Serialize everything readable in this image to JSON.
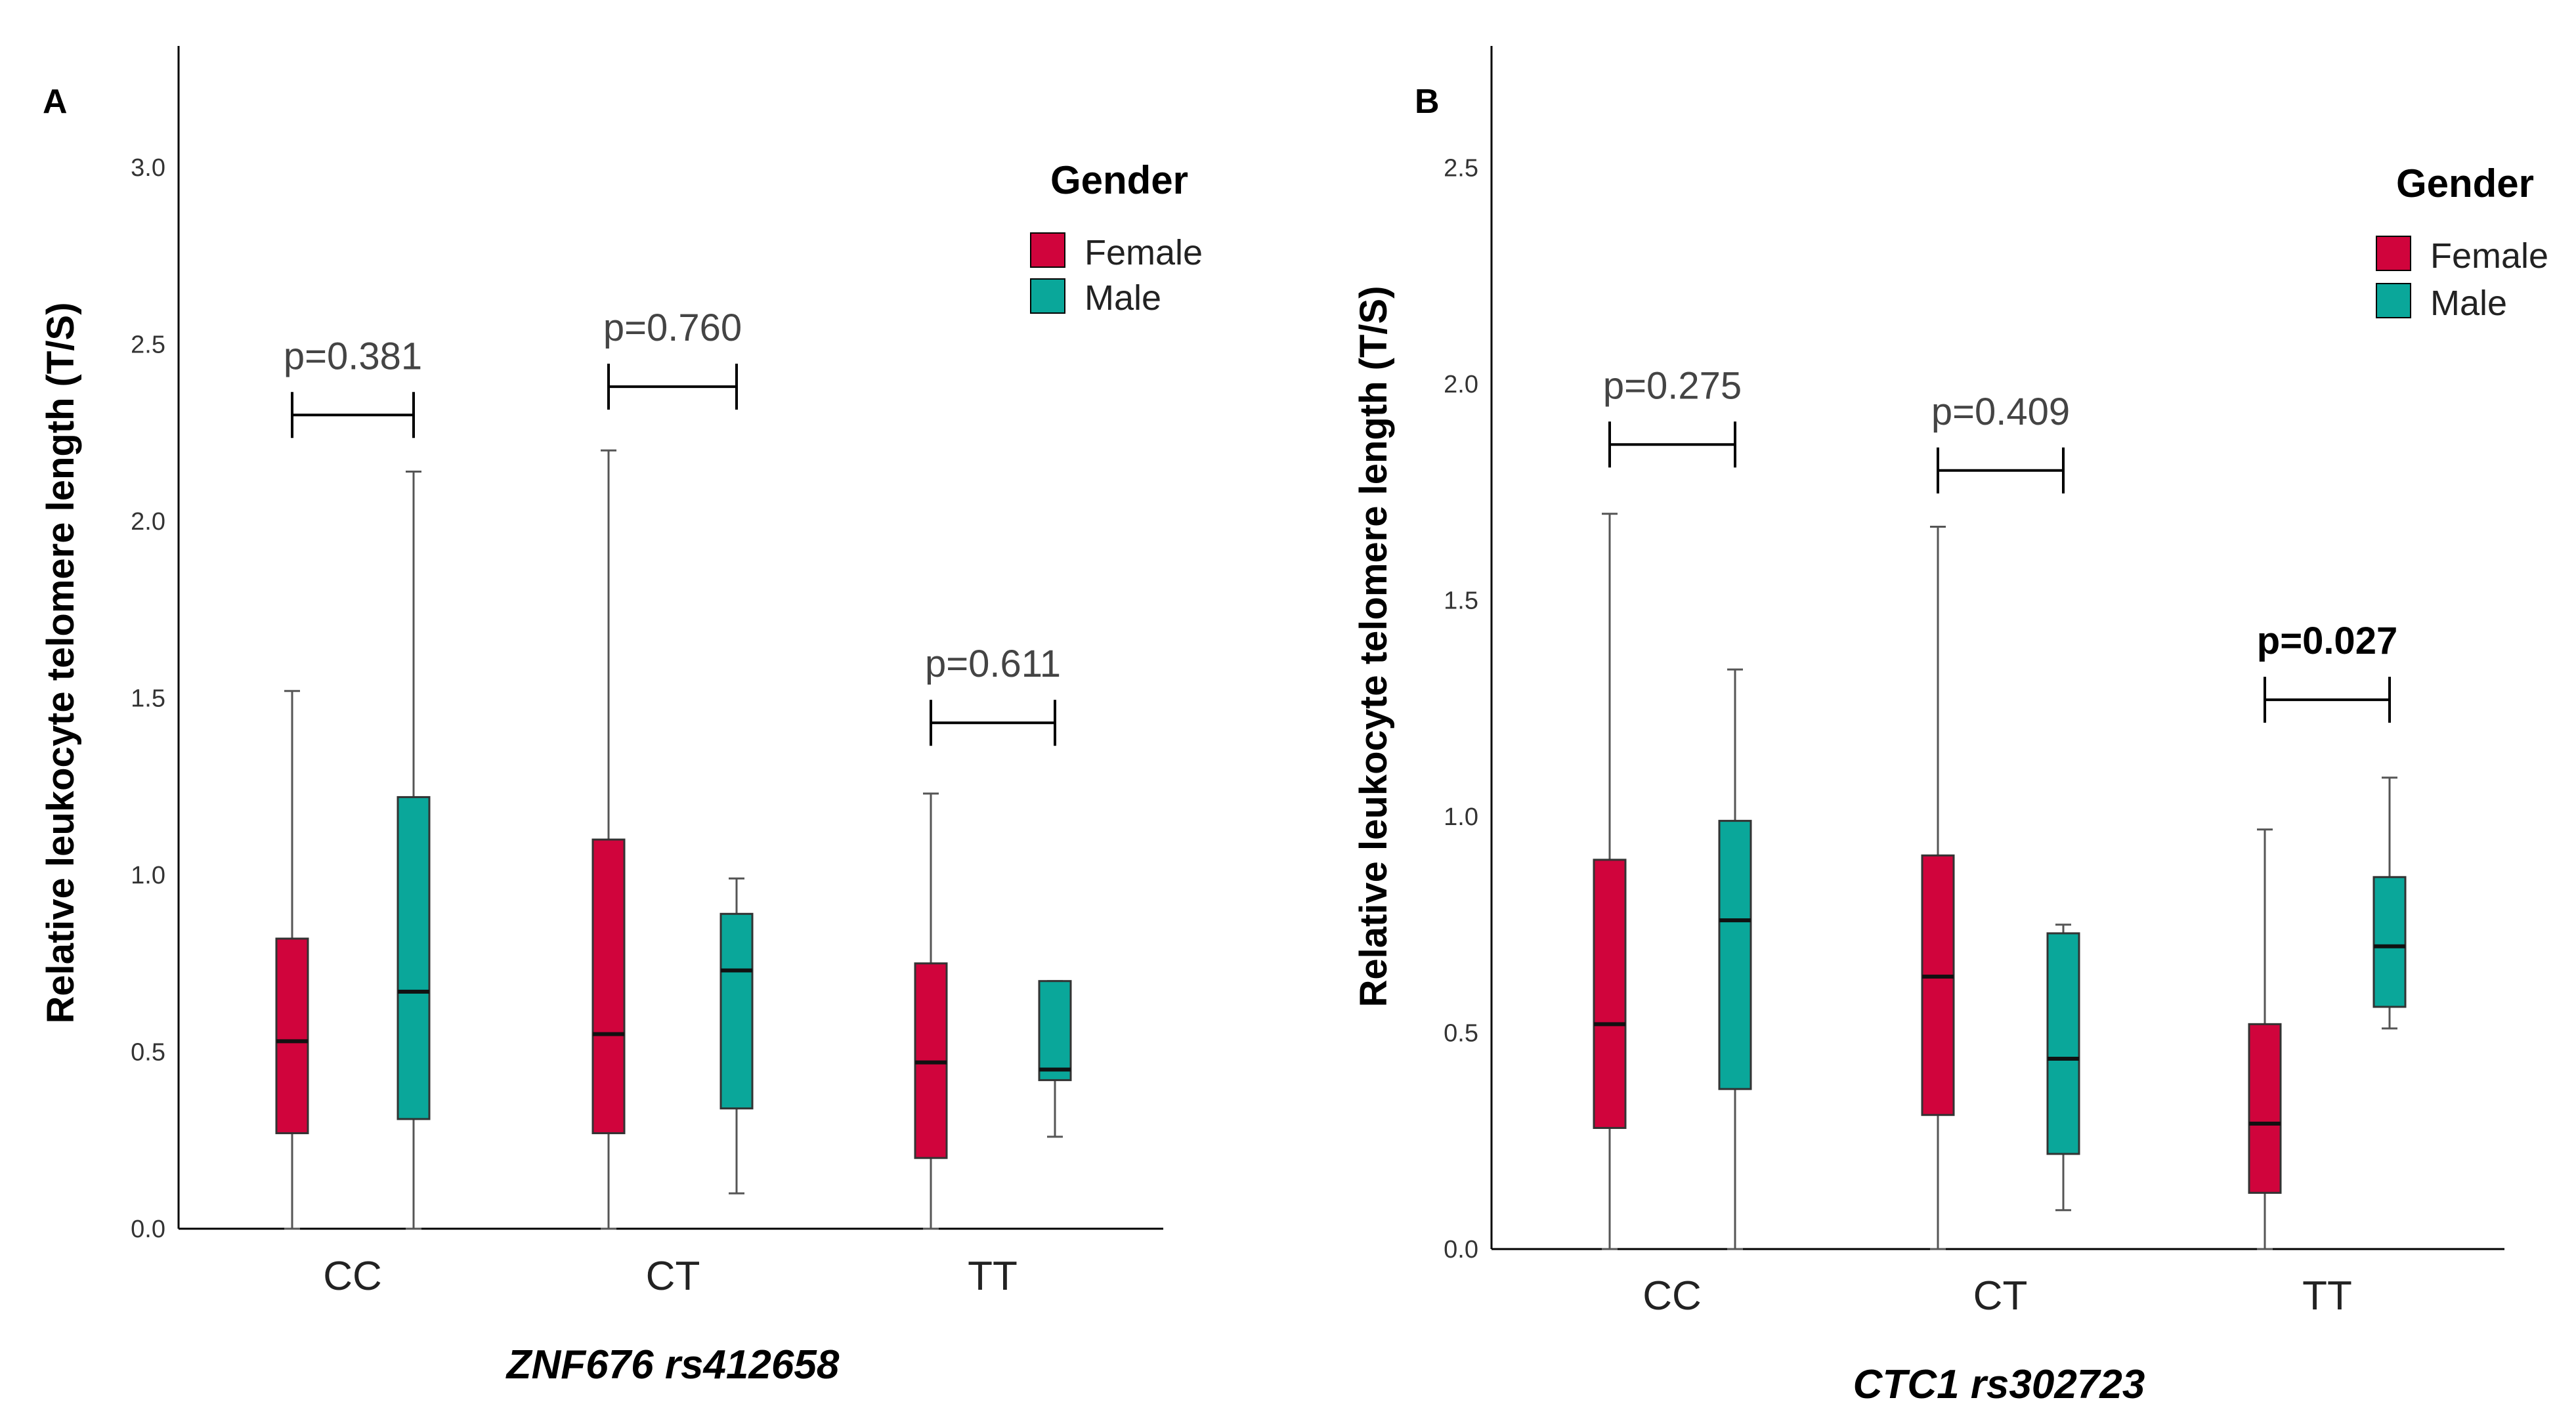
{
  "chart_data": [
    {
      "type": "boxplot",
      "panel": "A",
      "title": "",
      "xlabel": "ZNF676 rs412658",
      "ylabel": "Relative leukocyte telomere length (T/S)",
      "ylim": [
        0,
        3.3
      ],
      "yticks": [
        "0.0",
        "0.5",
        "1.0",
        "1.5",
        "2.0",
        "2.5",
        "3.0"
      ],
      "categories": [
        "CC",
        "CT",
        "TT"
      ],
      "legend": {
        "title": "Gender",
        "items": [
          "Female",
          "Male"
        ]
      },
      "series": [
        {
          "name": "Female",
          "color": "#d0043c",
          "boxes": [
            {
              "min": 0.0,
              "q1": 0.27,
              "median": 0.53,
              "q3": 0.82,
              "max": 1.52
            },
            {
              "min": 0.0,
              "q1": 0.27,
              "median": 0.55,
              "q3": 1.1,
              "max": 2.2
            },
            {
              "min": 0.0,
              "q1": 0.2,
              "median": 0.47,
              "q3": 0.75,
              "max": 1.23
            }
          ]
        },
        {
          "name": "Male",
          "color": "#0aa79a",
          "boxes": [
            {
              "min": 0.0,
              "q1": 0.31,
              "median": 0.67,
              "q3": 1.22,
              "max": 2.14
            },
            {
              "min": 0.1,
              "q1": 0.34,
              "median": 0.73,
              "q3": 0.89,
              "max": 0.99
            },
            {
              "min": 0.26,
              "q1": 0.42,
              "median": 0.45,
              "q3": 0.7,
              "max": 0.7
            }
          ]
        }
      ],
      "comparisons": [
        {
          "label": "p=0.381",
          "bold": false,
          "level": 2.3
        },
        {
          "label": "p=0.760",
          "bold": false,
          "level": 2.38
        },
        {
          "label": "p=0.611",
          "bold": false,
          "level": 1.43
        }
      ]
    },
    {
      "type": "boxplot",
      "panel": "B",
      "title": "",
      "xlabel": "CTC1 rs302723",
      "ylabel": "Relative leukocyte telomere length (T/S)",
      "ylim": [
        0,
        2.75
      ],
      "yticks": [
        "0.0",
        "0.5",
        "1.0",
        "1.5",
        "2.0",
        "2.5"
      ],
      "categories": [
        "CC",
        "CT",
        "TT"
      ],
      "legend": {
        "title": "Gender",
        "items": [
          "Female",
          "Male"
        ]
      },
      "series": [
        {
          "name": "Female",
          "color": "#d0043c",
          "boxes": [
            {
              "min": 0.0,
              "q1": 0.28,
              "median": 0.52,
              "q3": 0.9,
              "max": 1.7
            },
            {
              "min": 0.0,
              "q1": 0.31,
              "median": 0.63,
              "q3": 0.91,
              "max": 1.67
            },
            {
              "min": 0.0,
              "q1": 0.13,
              "median": 0.29,
              "q3": 0.52,
              "max": 0.97
            }
          ]
        },
        {
          "name": "Male",
          "color": "#0aa79a",
          "boxes": [
            {
              "min": 0.0,
              "q1": 0.37,
              "median": 0.76,
              "q3": 0.99,
              "max": 1.34
            },
            {
              "min": 0.09,
              "q1": 0.22,
              "median": 0.44,
              "q3": 0.73,
              "max": 0.75
            },
            {
              "min": 0.51,
              "q1": 0.56,
              "median": 0.7,
              "q3": 0.86,
              "max": 1.09
            }
          ]
        }
      ],
      "comparisons": [
        {
          "label": "p=0.275",
          "bold": false,
          "level": 1.86
        },
        {
          "label": "p=0.409",
          "bold": false,
          "level": 1.8
        },
        {
          "label": "p=0.027",
          "bold": true,
          "level": 1.27
        }
      ]
    }
  ]
}
